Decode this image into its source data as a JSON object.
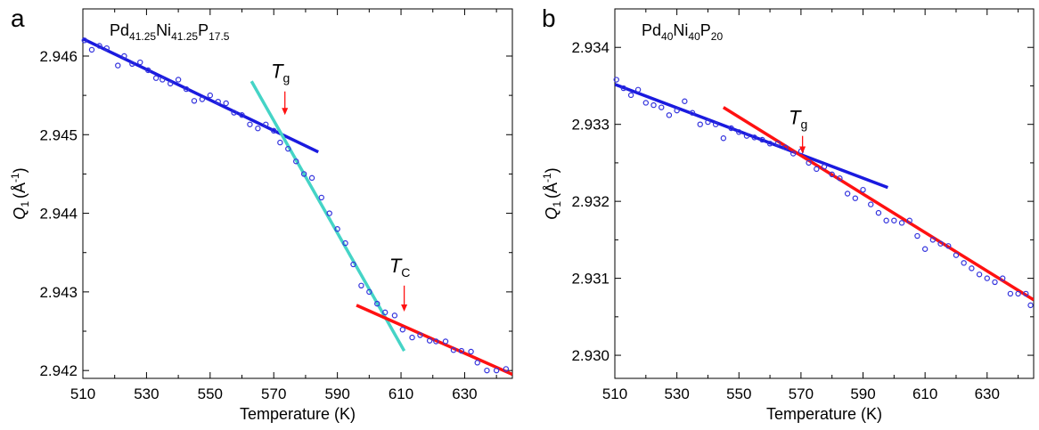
{
  "chart_data": [
    {
      "panel_label": "a",
      "type": "scatter",
      "title_parts": [
        {
          "text": "Pd",
          "sub": false
        },
        {
          "text": "41.25",
          "sub": true
        },
        {
          "text": "Ni",
          "sub": false
        },
        {
          "text": "41.25",
          "sub": true
        },
        {
          "text": "P",
          "sub": false
        },
        {
          "text": "17.5",
          "sub": true
        }
      ],
      "xlabel": "Temperature (K)",
      "ylabel_main": "Q",
      "ylabel_sub": "1",
      "ylabel_unit": "(Å",
      "ylabel_sup": "-1",
      "ylabel_close": ")",
      "xlim": [
        510,
        645
      ],
      "ylim": [
        2.9419,
        2.9466
      ],
      "xticks": [
        510,
        530,
        550,
        570,
        590,
        610,
        630
      ],
      "xtick_labels": [
        "510",
        "530",
        "550",
        "570",
        "590",
        "610",
        "630"
      ],
      "yticks": [
        2.942,
        2.943,
        2.944,
        2.945,
        2.946
      ],
      "ytick_labels": [
        "2.942",
        "2.943",
        "2.944",
        "2.945",
        "2.946"
      ],
      "point_color": "#3333dd",
      "points": [
        [
          510.5,
          2.9462
        ],
        [
          512.8,
          2.94608
        ],
        [
          515.2,
          2.94613
        ],
        [
          517.5,
          2.9461
        ],
        [
          521.0,
          2.94588
        ],
        [
          523.0,
          2.946
        ],
        [
          525.5,
          2.9459
        ],
        [
          528.0,
          2.94592
        ],
        [
          530.5,
          2.94582
        ],
        [
          533.0,
          2.94572
        ],
        [
          535.0,
          2.9457
        ],
        [
          537.5,
          2.94565
        ],
        [
          540.0,
          2.9457
        ],
        [
          542.5,
          2.94558
        ],
        [
          545.0,
          2.94543
        ],
        [
          547.5,
          2.94545
        ],
        [
          550.0,
          2.9455
        ],
        [
          552.5,
          2.94542
        ],
        [
          555.0,
          2.9454
        ],
        [
          557.5,
          2.94528
        ],
        [
          560.0,
          2.94525
        ],
        [
          562.5,
          2.94513
        ],
        [
          565.0,
          2.94508
        ],
        [
          567.5,
          2.94513
        ],
        [
          570.0,
          2.94505
        ],
        [
          572.0,
          2.9449
        ],
        [
          574.5,
          2.94482
        ],
        [
          577.0,
          2.94466
        ],
        [
          579.5,
          2.9445
        ],
        [
          582.0,
          2.94445
        ],
        [
          585.0,
          2.9442
        ],
        [
          587.5,
          2.944
        ],
        [
          590.0,
          2.9438
        ],
        [
          592.5,
          2.94362
        ],
        [
          595.0,
          2.94335
        ],
        [
          597.5,
          2.94308
        ],
        [
          600.0,
          2.943
        ],
        [
          602.5,
          2.94285
        ],
        [
          605.0,
          2.94274
        ],
        [
          608.0,
          2.9427
        ],
        [
          610.5,
          2.94252
        ],
        [
          613.5,
          2.94242
        ],
        [
          616.0,
          2.94245
        ],
        [
          619.0,
          2.94238
        ],
        [
          621.0,
          2.94237
        ],
        [
          624.0,
          2.94237
        ],
        [
          626.5,
          2.94226
        ],
        [
          629.0,
          2.94225
        ],
        [
          632.0,
          2.94224
        ],
        [
          634.0,
          2.9421
        ],
        [
          637.0,
          2.942
        ],
        [
          640.0,
          2.942
        ],
        [
          643.0,
          2.94202
        ]
      ],
      "fit_lines": [
        {
          "color": "#1a1adf",
          "x": [
            510,
            584
          ],
          "y": [
            2.94622,
            2.94478
          ]
        },
        {
          "color": "#45d4c6",
          "x": [
            563,
            611
          ],
          "y": [
            2.94568,
            2.94225
          ]
        },
        {
          "color": "#ff1111",
          "x": [
            596,
            645
          ],
          "y": [
            2.94283,
            2.94195
          ]
        }
      ],
      "annotations": [
        {
          "main": "T",
          "sub": "g",
          "x": 573.5,
          "label_y": 2.94572,
          "arrow_from": 2.94555,
          "arrow_to": 2.94525
        },
        {
          "main": "T",
          "sub": "C",
          "x": 611.0,
          "label_y": 2.94325,
          "arrow_from": 2.94308,
          "arrow_to": 2.94275
        }
      ]
    },
    {
      "panel_label": "b",
      "type": "scatter",
      "title_parts": [
        {
          "text": "Pd",
          "sub": false
        },
        {
          "text": "40",
          "sub": true
        },
        {
          "text": "Ni",
          "sub": false
        },
        {
          "text": "40",
          "sub": true
        },
        {
          "text": "P",
          "sub": false
        },
        {
          "text": "20",
          "sub": true
        }
      ],
      "xlabel": "Temperature (K)",
      "ylabel_main": "Q",
      "ylabel_sub": "1",
      "ylabel_unit": "(Å",
      "ylabel_sup": "-1",
      "ylabel_close": ")",
      "xlim": [
        510,
        645
      ],
      "ylim": [
        2.9297,
        2.9345
      ],
      "xticks": [
        510,
        530,
        550,
        570,
        590,
        610,
        630
      ],
      "xtick_labels": [
        "510",
        "530",
        "550",
        "570",
        "590",
        "610",
        "630"
      ],
      "yticks": [
        2.93,
        2.931,
        2.932,
        2.933,
        2.934
      ],
      "ytick_labels": [
        "2.930",
        "2.931",
        "2.932",
        "2.933",
        "2.934"
      ],
      "point_color": "#3333dd",
      "points": [
        [
          510.5,
          2.93358
        ],
        [
          512.8,
          2.93347
        ],
        [
          515.2,
          2.93338
        ],
        [
          517.5,
          2.93345
        ],
        [
          520.0,
          2.93328
        ],
        [
          522.5,
          2.93325
        ],
        [
          525.0,
          2.93322
        ],
        [
          527.5,
          2.93312
        ],
        [
          530.0,
          2.93318
        ],
        [
          532.5,
          2.9333
        ],
        [
          535.0,
          2.93315
        ],
        [
          537.5,
          2.933
        ],
        [
          540.0,
          2.93303
        ],
        [
          542.5,
          2.933
        ],
        [
          545.0,
          2.93282
        ],
        [
          547.5,
          2.93295
        ],
        [
          550.0,
          2.9329
        ],
        [
          552.5,
          2.93285
        ],
        [
          555.0,
          2.93283
        ],
        [
          557.5,
          2.9328
        ],
        [
          560.0,
          2.93275
        ],
        [
          562.5,
          2.93275
        ],
        [
          565.0,
          2.9327
        ],
        [
          567.5,
          2.93262
        ],
        [
          570.0,
          2.93265
        ],
        [
          572.5,
          2.9325
        ],
        [
          575.0,
          2.93242
        ],
        [
          577.5,
          2.93245
        ],
        [
          580.0,
          2.93235
        ],
        [
          582.5,
          2.9323
        ],
        [
          585.0,
          2.9321
        ],
        [
          587.5,
          2.93204
        ],
        [
          590.0,
          2.93215
        ],
        [
          592.5,
          2.93196
        ],
        [
          595.0,
          2.93185
        ],
        [
          597.5,
          2.93175
        ],
        [
          600.0,
          2.93175
        ],
        [
          602.5,
          2.93172
        ],
        [
          605.0,
          2.93175
        ],
        [
          607.5,
          2.93155
        ],
        [
          610.0,
          2.93138
        ],
        [
          612.5,
          2.9315
        ],
        [
          615.0,
          2.93145
        ],
        [
          617.5,
          2.93142
        ],
        [
          620.0,
          2.9313
        ],
        [
          622.5,
          2.9312
        ],
        [
          625.0,
          2.93113
        ],
        [
          627.5,
          2.93105
        ],
        [
          630.0,
          2.931
        ],
        [
          632.5,
          2.93095
        ],
        [
          635.0,
          2.931
        ],
        [
          637.5,
          2.9308
        ],
        [
          640.0,
          2.9308
        ],
        [
          642.5,
          2.9308
        ],
        [
          644.0,
          2.93065
        ]
      ],
      "fit_lines": [
        {
          "color": "#1a1adf",
          "x": [
            510,
            598
          ],
          "y": [
            2.93352,
            2.93218
          ]
        },
        {
          "color": "#ff1111",
          "x": [
            545,
            645
          ],
          "y": [
            2.93322,
            2.93072
          ]
        }
      ],
      "annotations": [
        {
          "main": "T",
          "sub": "g",
          "x": 570.5,
          "label_y": 2.933,
          "arrow_from": 2.93285,
          "arrow_to": 2.93262
        }
      ]
    }
  ]
}
